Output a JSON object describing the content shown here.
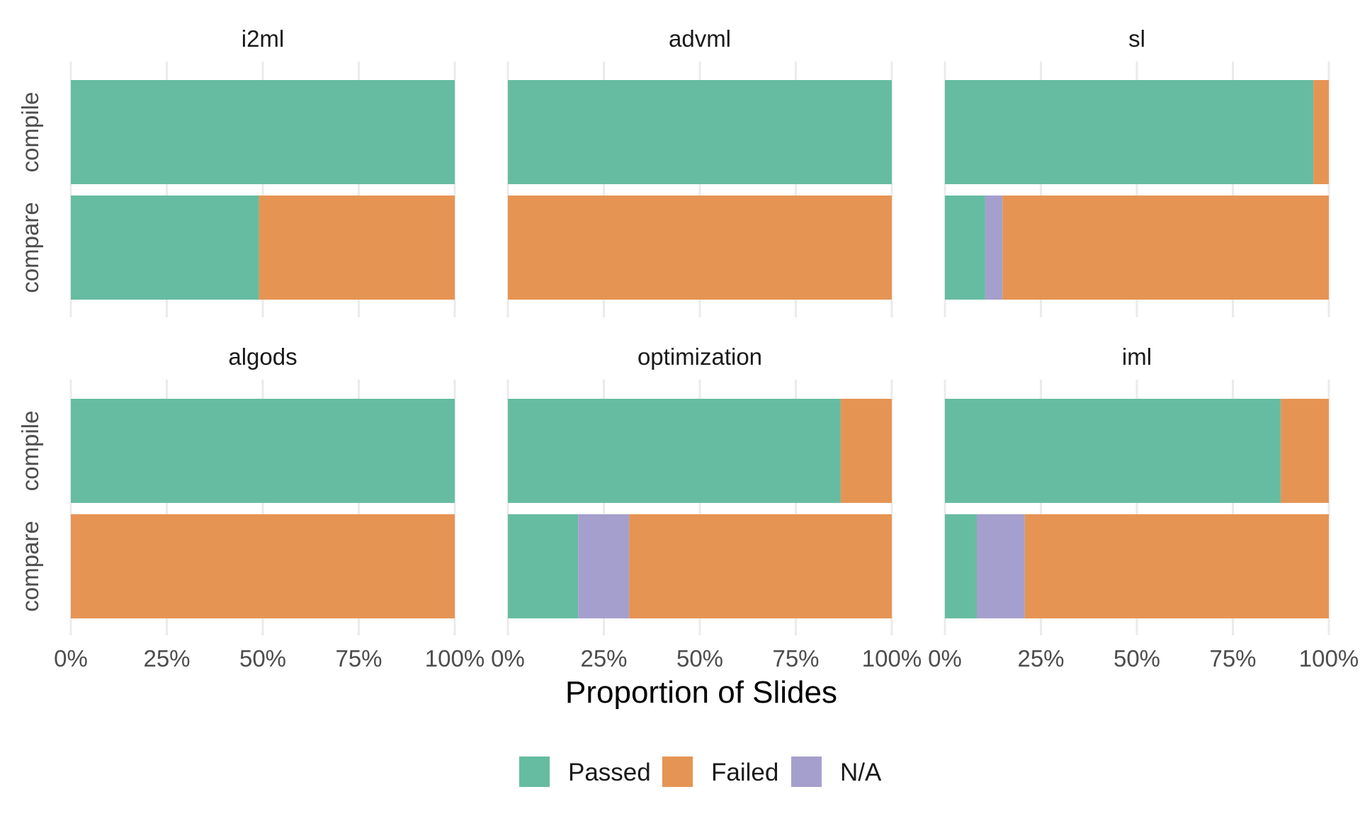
{
  "chart_data": {
    "type": "bar",
    "orientation": "horizontal",
    "stacked": true,
    "facets": [
      {
        "title": "i2ml",
        "categories": [
          "compile",
          "compare"
        ],
        "series": [
          {
            "name": "Passed",
            "values": [
              1.0,
              0.49
            ]
          },
          {
            "name": "Failed",
            "values": [
              0.0,
              0.51
            ]
          },
          {
            "name": "N/A",
            "values": [
              0.0,
              0.0
            ]
          }
        ]
      },
      {
        "title": "advml",
        "categories": [
          "compile",
          "compare"
        ],
        "series": [
          {
            "name": "Passed",
            "values": [
              1.0,
              0.0
            ]
          },
          {
            "name": "Failed",
            "values": [
              0.0,
              1.0
            ]
          },
          {
            "name": "N/A",
            "values": [
              0.0,
              0.0
            ]
          }
        ]
      },
      {
        "title": "sl",
        "categories": [
          "compile",
          "compare"
        ],
        "series": [
          {
            "name": "Passed",
            "values": [
              0.96,
              0.105
            ]
          },
          {
            "name": "Failed",
            "values": [
              0.04,
              0.85
            ]
          },
          {
            "name": "N/A",
            "values": [
              0.0,
              0.045
            ]
          }
        ]
      },
      {
        "title": "algods",
        "categories": [
          "compile",
          "compare"
        ],
        "series": [
          {
            "name": "Passed",
            "values": [
              1.0,
              0.0
            ]
          },
          {
            "name": "Failed",
            "values": [
              0.0,
              1.0
            ]
          },
          {
            "name": "N/A",
            "values": [
              0.0,
              0.0
            ]
          }
        ]
      },
      {
        "title": "optimization",
        "categories": [
          "compile",
          "compare"
        ],
        "series": [
          {
            "name": "Passed",
            "values": [
              0.867,
              0.183
            ]
          },
          {
            "name": "Failed",
            "values": [
              0.133,
              0.684
            ]
          },
          {
            "name": "N/A",
            "values": [
              0.0,
              0.133
            ]
          }
        ]
      },
      {
        "title": "iml",
        "categories": [
          "compile",
          "compare"
        ],
        "series": [
          {
            "name": "Passed",
            "values": [
              0.875,
              0.083
            ]
          },
          {
            "name": "Failed",
            "values": [
              0.125,
              0.792
            ]
          },
          {
            "name": "N/A",
            "values": [
              0.0,
              0.125
            ]
          }
        ]
      }
    ],
    "xlabel": "Proportion of Slides",
    "ylabel": "",
    "xlim": [
      0,
      1
    ],
    "x_ticks": [
      "0%",
      "25%",
      "50%",
      "75%",
      "100%"
    ],
    "legend": [
      "Passed",
      "Failed",
      "N/A"
    ],
    "legend_position": "bottom",
    "grid": true,
    "colors": {
      "Passed": "#66bca1",
      "Failed": "#e69454",
      "N/A": "#a59fcd",
      "grid": "#ebebeb"
    }
  }
}
